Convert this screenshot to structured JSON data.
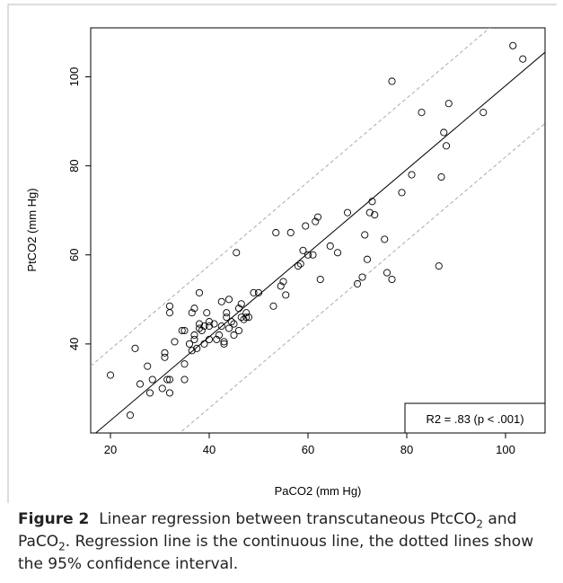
{
  "caption": {
    "label": "Figure 2",
    "pre": "Linear regression between transcutaneous PtcCO",
    "sub1": "2",
    "mid": " and PaCO",
    "sub2": "2",
    "post": ". Regression line is the continuous line, the dotted lines show the 95% confidence interval."
  },
  "chart_data": {
    "type": "scatter",
    "xlabel": "PaCO2 (mm Hg)",
    "ylabel": "PtCO2 (mm Hg)",
    "xlim": [
      16,
      108
    ],
    "ylim": [
      20,
      111
    ],
    "xticks": [
      20,
      40,
      60,
      80,
      100
    ],
    "yticks": [
      40,
      60,
      80,
      100
    ],
    "grid": false,
    "annotation": "R2 = .83 (p < .001)",
    "annotation_position": "bottom-right",
    "regression": {
      "slope": 0.94,
      "intercept": 4.0,
      "ci_offset": 16
    },
    "points": [
      [
        20,
        33
      ],
      [
        24,
        24
      ],
      [
        25,
        39
      ],
      [
        26,
        31
      ],
      [
        27.5,
        35
      ],
      [
        28,
        29
      ],
      [
        28.5,
        32
      ],
      [
        30.5,
        30
      ],
      [
        31,
        38
      ],
      [
        31,
        37
      ],
      [
        31.5,
        32
      ],
      [
        32,
        29
      ],
      [
        32,
        32
      ],
      [
        32,
        48.5
      ],
      [
        32,
        47
      ],
      [
        33,
        40.5
      ],
      [
        34.5,
        43
      ],
      [
        35,
        43
      ],
      [
        35,
        35.5
      ],
      [
        35,
        32
      ],
      [
        36,
        40
      ],
      [
        36.5,
        47
      ],
      [
        36.5,
        38.5
      ],
      [
        37,
        48
      ],
      [
        37,
        42
      ],
      [
        37,
        41
      ],
      [
        37.5,
        39
      ],
      [
        38,
        44.5
      ],
      [
        38,
        43.5
      ],
      [
        38,
        51.5
      ],
      [
        38.5,
        43
      ],
      [
        39,
        40
      ],
      [
        39,
        44
      ],
      [
        39.5,
        47
      ],
      [
        40,
        45
      ],
      [
        40,
        44
      ],
      [
        40,
        41
      ],
      [
        41,
        44.5
      ],
      [
        41.5,
        41
      ],
      [
        42,
        42
      ],
      [
        42.5,
        44
      ],
      [
        42.5,
        49.5
      ],
      [
        43,
        40
      ],
      [
        43,
        40.5
      ],
      [
        43.5,
        47
      ],
      [
        43.5,
        46
      ],
      [
        44,
        50
      ],
      [
        44,
        43.5
      ],
      [
        44.5,
        45
      ],
      [
        45,
        44.5
      ],
      [
        45,
        42
      ],
      [
        45.5,
        60.5
      ],
      [
        46,
        48
      ],
      [
        46,
        43
      ],
      [
        46.5,
        46
      ],
      [
        46.5,
        49
      ],
      [
        47,
        45.5
      ],
      [
        47.5,
        47
      ],
      [
        47.5,
        46
      ],
      [
        48,
        46
      ],
      [
        49,
        51.5
      ],
      [
        50,
        51.5
      ],
      [
        53,
        48.5
      ],
      [
        53.5,
        65
      ],
      [
        54.5,
        53
      ],
      [
        55,
        54
      ],
      [
        55.5,
        51
      ],
      [
        56.5,
        65
      ],
      [
        58,
        57.5
      ],
      [
        58.5,
        58
      ],
      [
        59,
        61
      ],
      [
        59.5,
        66.5
      ],
      [
        60,
        60
      ],
      [
        61,
        60
      ],
      [
        61.5,
        67.5
      ],
      [
        62,
        68.5
      ],
      [
        62.5,
        54.5
      ],
      [
        64.5,
        62
      ],
      [
        66,
        60.5
      ],
      [
        68,
        69.5
      ],
      [
        70,
        53.5
      ],
      [
        71,
        55
      ],
      [
        71.5,
        64.5
      ],
      [
        72,
        59
      ],
      [
        72.5,
        69.5
      ],
      [
        73,
        72
      ],
      [
        73.5,
        69
      ],
      [
        75.5,
        63.5
      ],
      [
        76,
        56
      ],
      [
        77,
        54.5
      ],
      [
        77,
        99
      ],
      [
        79,
        74
      ],
      [
        81,
        78
      ],
      [
        83,
        92
      ],
      [
        86.5,
        57.5
      ],
      [
        87,
        77.5
      ],
      [
        87.5,
        87.5
      ],
      [
        88,
        84.5
      ],
      [
        88.5,
        94
      ],
      [
        95.5,
        92
      ],
      [
        101.5,
        107
      ],
      [
        103.5,
        104
      ]
    ]
  }
}
